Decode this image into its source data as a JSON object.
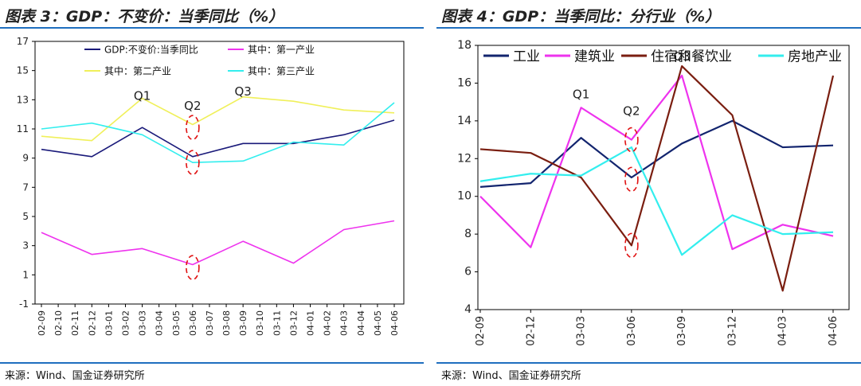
{
  "panels": [
    {
      "title": "图表 3：GDP：不变价：当季同比（%）",
      "source": "来源：Wind、国金证券研究所"
    },
    {
      "title": "图表 4：GDP：当季同比：分行业（%）",
      "source": "来源：Wind、国金证券研究所"
    }
  ],
  "chart_data": [
    {
      "type": "line",
      "x": [
        "02-09",
        "02-10",
        "02-11",
        "02-12",
        "03-01",
        "03-02",
        "03-03",
        "03-04",
        "03-05",
        "03-06",
        "03-07",
        "03-08",
        "03-09",
        "03-10",
        "03-11",
        "03-12",
        "04-01",
        "04-02",
        "04-03",
        "04-04",
        "04-05",
        "04-06"
      ],
      "ylim": [
        -1,
        17
      ],
      "yticks": [
        -1,
        1,
        3,
        5,
        7,
        9,
        11,
        13,
        15,
        17
      ],
      "grid": false,
      "legend": "top",
      "series": [
        {
          "name": "GDP:不变价:当季同比",
          "color": "#1a1a7a",
          "points": [
            [
              "02-09",
              9.6
            ],
            [
              "02-12",
              9.1
            ],
            [
              "03-03",
              11.1
            ],
            [
              "03-06",
              9.1
            ],
            [
              "03-09",
              10.0
            ],
            [
              "03-12",
              10.0
            ],
            [
              "04-03",
              10.6
            ],
            [
              "04-06",
              11.6
            ]
          ]
        },
        {
          "name": "其中：第一产业",
          "color": "#ee33ee",
          "points": [
            [
              "02-09",
              3.9
            ],
            [
              "02-12",
              2.4
            ],
            [
              "03-03",
              2.8
            ],
            [
              "03-06",
              1.7
            ],
            [
              "03-09",
              3.3
            ],
            [
              "03-12",
              1.8
            ],
            [
              "04-03",
              4.1
            ],
            [
              "04-06",
              4.7
            ]
          ]
        },
        {
          "name": "其中：第二产业",
          "color": "#f0f05a",
          "points": [
            [
              "02-09",
              10.5
            ],
            [
              "02-12",
              10.2
            ],
            [
              "03-03",
              13.1
            ],
            [
              "03-06",
              11.3
            ],
            [
              "03-09",
              13.2
            ],
            [
              "03-12",
              12.9
            ],
            [
              "04-03",
              12.3
            ],
            [
              "04-06",
              12.1
            ]
          ]
        },
        {
          "name": "其中：第三产业",
          "color": "#33eeee",
          "points": [
            [
              "02-09",
              11.0
            ],
            [
              "02-12",
              11.4
            ],
            [
              "03-03",
              10.6
            ],
            [
              "03-06",
              8.7
            ],
            [
              "03-09",
              8.8
            ],
            [
              "03-12",
              10.1
            ],
            [
              "04-03",
              9.9
            ],
            [
              "04-06",
              12.8
            ]
          ]
        }
      ],
      "annotations": [
        {
          "text": "Q1",
          "x": "03-03",
          "y": 13.0
        },
        {
          "text": "Q2",
          "x": "03-06",
          "y": 12.3
        },
        {
          "text": "Q3",
          "x": "03-09",
          "y": 13.3
        }
      ],
      "markers": [
        {
          "x": "03-06",
          "y": 11.1
        },
        {
          "x": "03-06",
          "y": 8.7
        },
        {
          "x": "03-06",
          "y": 1.5
        }
      ]
    },
    {
      "type": "line",
      "x": [
        "02-09",
        "02-12",
        "03-03",
        "03-06",
        "03-09",
        "03-12",
        "04-03",
        "04-06"
      ],
      "ylim": [
        4,
        18
      ],
      "yticks": [
        4,
        6,
        8,
        10,
        12,
        14,
        16,
        18
      ],
      "grid": false,
      "legend": "top",
      "series": [
        {
          "name": "工业",
          "color": "#12246e",
          "values": [
            10.5,
            10.7,
            13.1,
            11.0,
            12.8,
            14.0,
            12.6,
            12.7
          ]
        },
        {
          "name": "建筑业",
          "color": "#ee33ee",
          "values": [
            10.0,
            7.3,
            14.7,
            13.0,
            16.4,
            7.2,
            8.5,
            7.9
          ]
        },
        {
          "name": "住宿和餐饮业",
          "color": "#7a1e10",
          "values": [
            12.5,
            12.3,
            11.0,
            7.4,
            16.9,
            14.3,
            5.0,
            16.4
          ]
        },
        {
          "name": "房地产业",
          "color": "#33eeee",
          "values": [
            10.8,
            11.2,
            11.1,
            12.6,
            6.9,
            9.0,
            8.0,
            8.1
          ]
        }
      ],
      "annotations": [
        {
          "text": "Q1",
          "x": "03-03",
          "y": 15.2
        },
        {
          "text": "Q2",
          "x": "03-06",
          "y": 14.3
        },
        {
          "text": "Q3",
          "x": "03-09",
          "y": 17.2
        }
      ],
      "markers": [
        {
          "x": "03-06",
          "y": 13.0
        },
        {
          "x": "03-06",
          "y": 10.9
        },
        {
          "x": "03-06",
          "y": 7.4
        }
      ]
    }
  ]
}
